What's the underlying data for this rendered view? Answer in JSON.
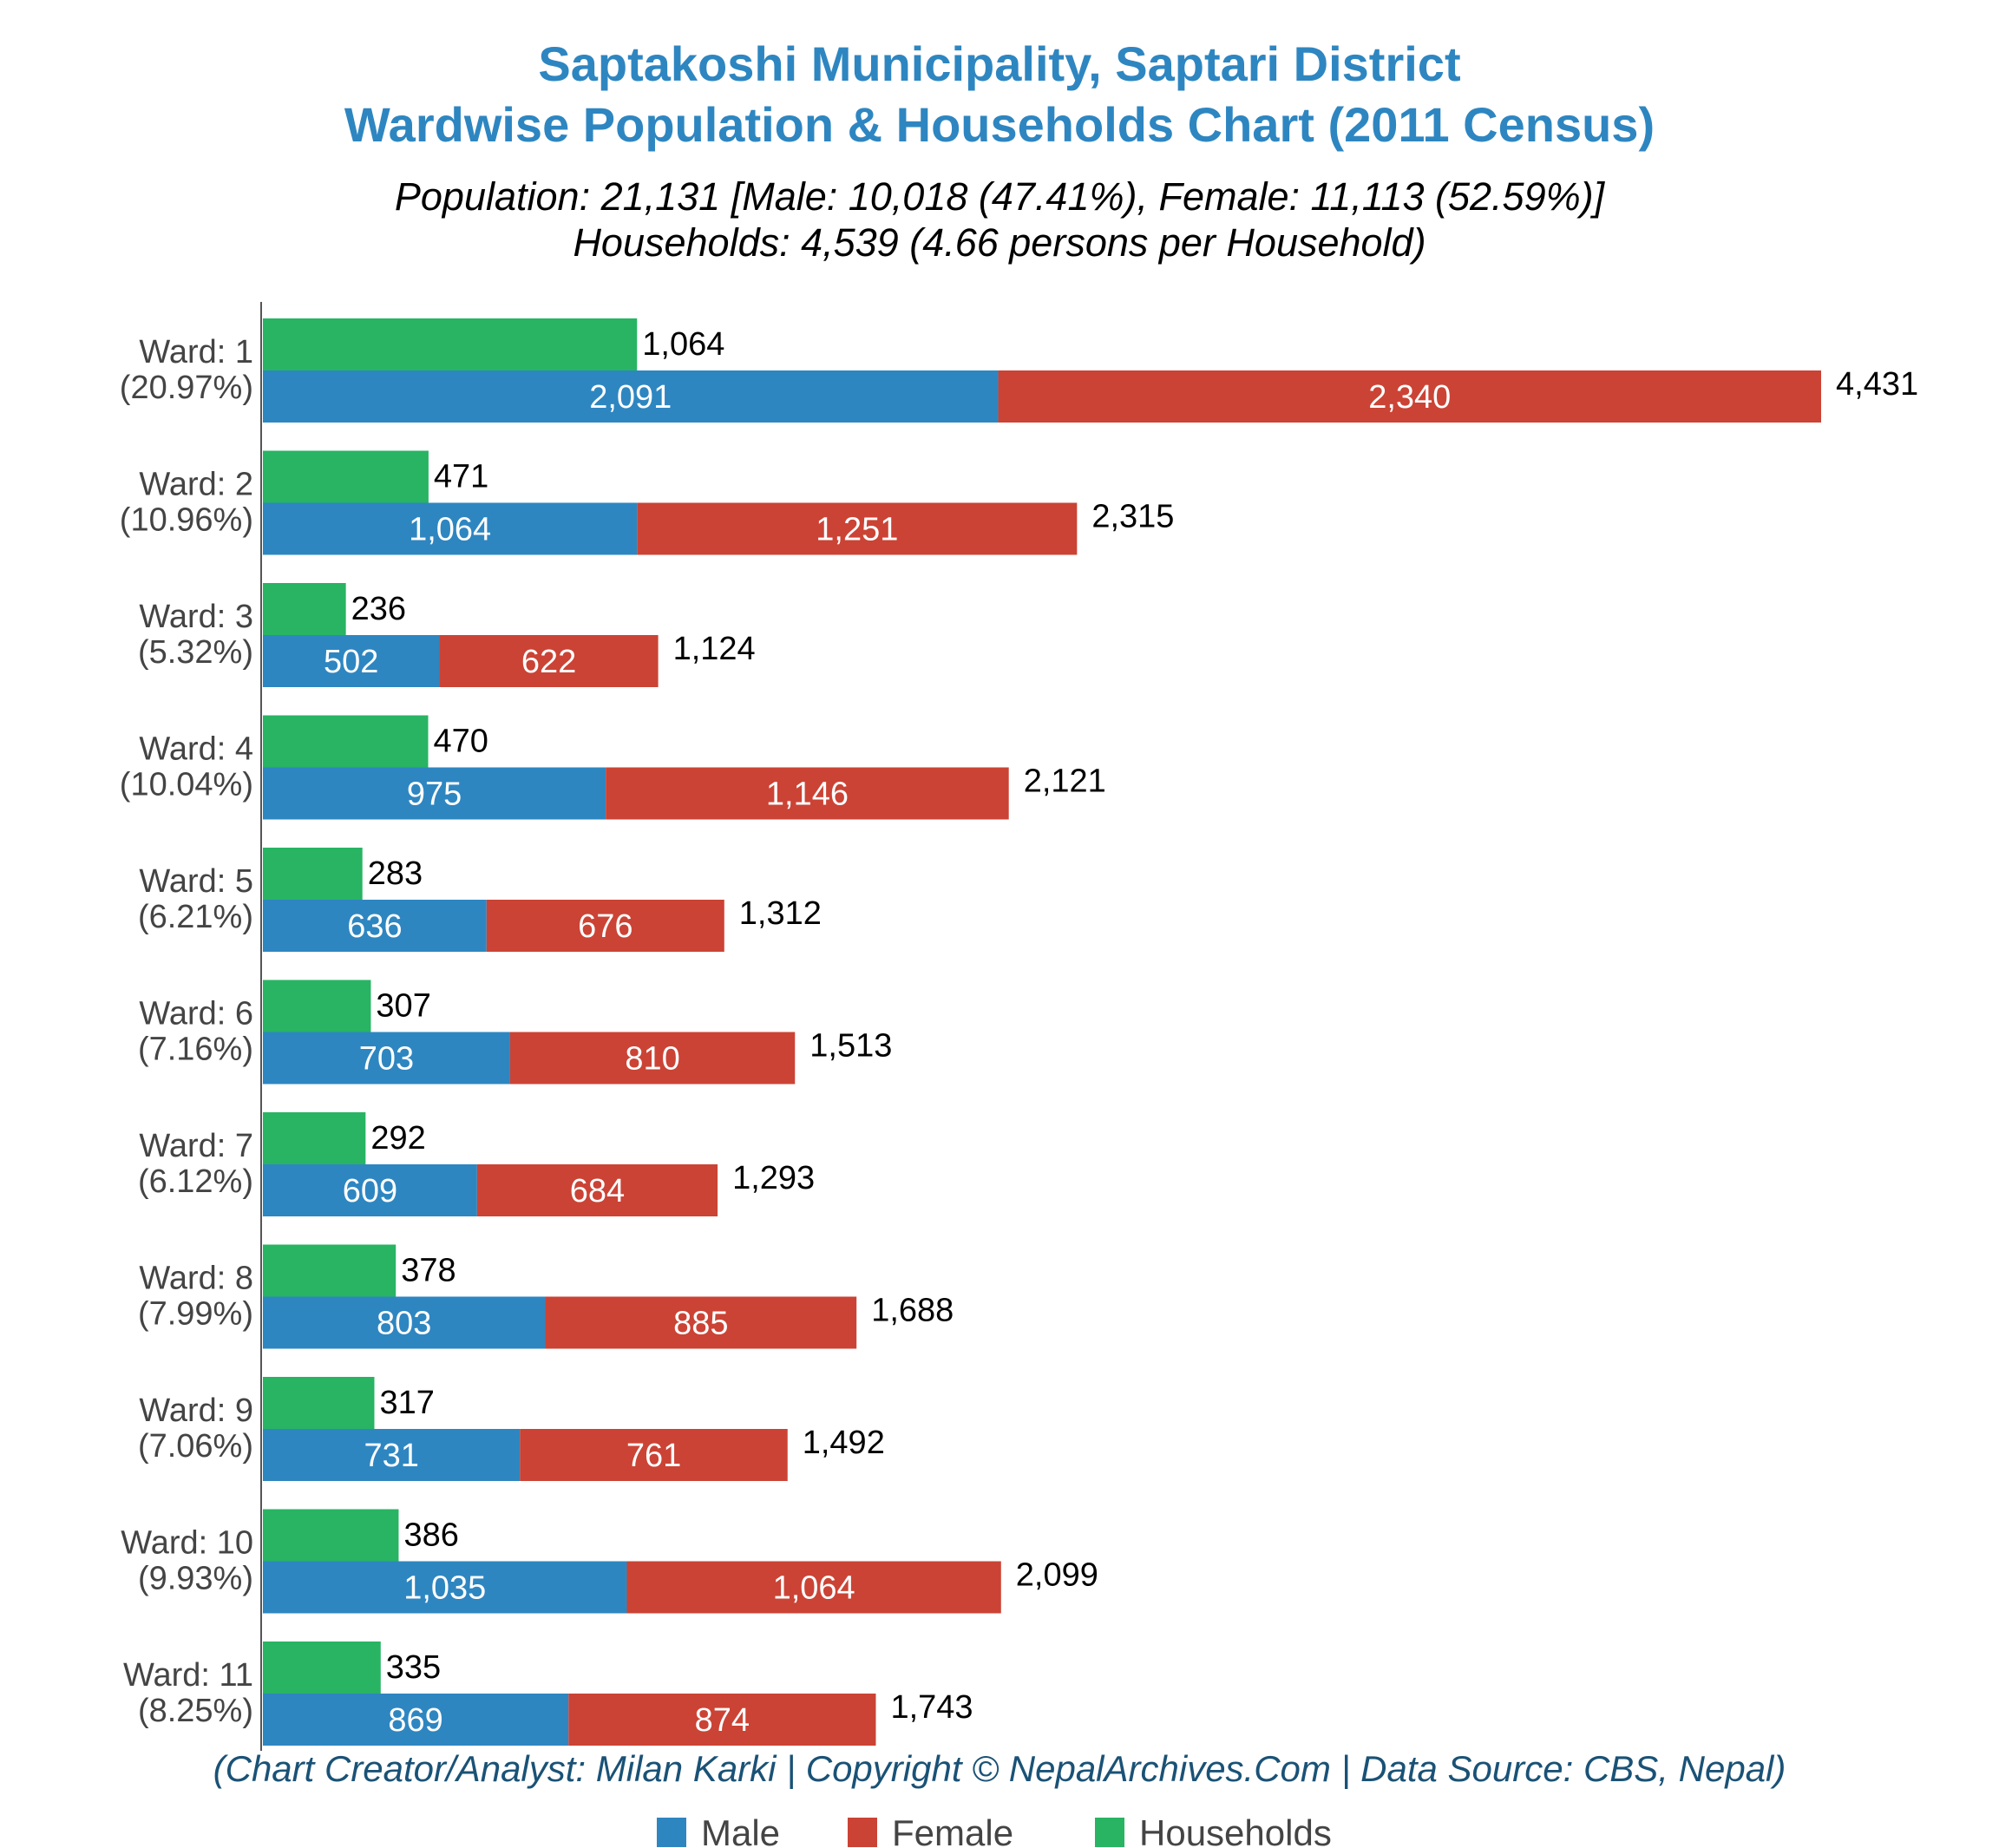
{
  "colors": {
    "male": "#2e86c1",
    "female": "#cb4335",
    "households": "#28b463",
    "title": "#2e86c1",
    "credit": "#1a5276"
  },
  "chart_data": {
    "type": "bar",
    "orientation": "horizontal",
    "title_line1": "Saptakoshi Municipality, Saptari District",
    "title_line2": "Wardwise Population & Households Chart (2011 Census)",
    "subtitle_line1": "Population: 21,131 [Male: 10,018 (47.41%), Female: 11,113 (52.59%)]",
    "subtitle_line2": "Households: 4,539 (4.66 persons per Household)",
    "credit": "(Chart Creator/Analyst: Milan Karki | Copyright © NepalArchives.Com | Data Source: CBS, Nepal)",
    "categories": [
      "Ward: 1",
      "Ward: 2",
      "Ward: 3",
      "Ward: 4",
      "Ward: 5",
      "Ward: 6",
      "Ward: 7",
      "Ward: 8",
      "Ward: 9",
      "Ward: 10",
      "Ward: 11"
    ],
    "category_shares": [
      "(20.97%)",
      "(10.96%)",
      "(5.32%)",
      "(10.04%)",
      "(6.21%)",
      "(7.16%)",
      "(6.12%)",
      "(7.99%)",
      "(7.06%)",
      "(9.93%)",
      "(8.25%)"
    ],
    "series": [
      {
        "name": "Male",
        "values": [
          2091,
          1064,
          502,
          975,
          636,
          703,
          609,
          803,
          731,
          1035,
          869
        ],
        "labels": [
          "2,091",
          "1,064",
          "502",
          "975",
          "636",
          "703",
          "609",
          "803",
          "731",
          "1,035",
          "869"
        ]
      },
      {
        "name": "Female",
        "values": [
          2340,
          1251,
          622,
          1146,
          676,
          810,
          684,
          885,
          761,
          1064,
          874
        ],
        "labels": [
          "2,340",
          "1,251",
          "622",
          "1,146",
          "676",
          "810",
          "684",
          "885",
          "761",
          "1,064",
          "874"
        ]
      },
      {
        "name": "Households",
        "values": [
          1064,
          471,
          236,
          470,
          283,
          307,
          292,
          378,
          317,
          386,
          335
        ],
        "labels": [
          "1,064",
          "471",
          "236",
          "470",
          "283",
          "307",
          "292",
          "378",
          "317",
          "386",
          "335"
        ]
      }
    ],
    "totals": [
      4431,
      2315,
      1124,
      2121,
      1312,
      1513,
      1293,
      1688,
      1492,
      2099,
      1743
    ],
    "total_labels": [
      "4,431",
      "2,315",
      "1,124",
      "2,121",
      "1,312",
      "1,513",
      "1,293",
      "1,688",
      "1,492",
      "2,099",
      "1,743"
    ],
    "xlim": [
      0,
      4431
    ],
    "stacked": [
      "Male",
      "Female"
    ],
    "grid": false,
    "legend_position": "bottom",
    "legend": [
      "Male",
      "Female",
      "Households"
    ]
  }
}
